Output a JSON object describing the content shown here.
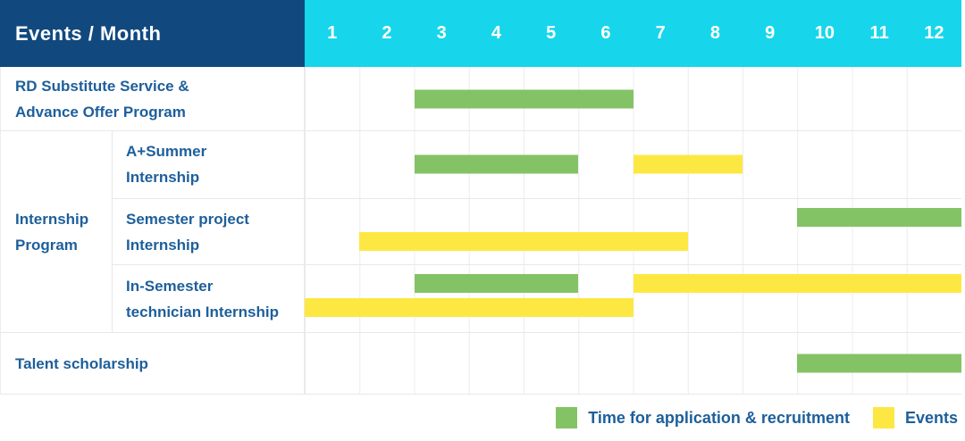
{
  "header": {
    "title": "Events / Month",
    "months": [
      "1",
      "2",
      "3",
      "4",
      "5",
      "6",
      "7",
      "8",
      "9",
      "10",
      "11",
      "12"
    ]
  },
  "colors": {
    "header_bg": "#11497F",
    "months_bg": "#17D6EB",
    "application_green": "#84C365",
    "events_yellow": "#FDE843",
    "label_text": "#1D5F9B",
    "grid_line": "#ECECEC"
  },
  "legend": [
    {
      "key": "application",
      "label": "Time for application & recruitment",
      "color": "#84C365"
    },
    {
      "key": "events",
      "label": "Events",
      "color": "#FDE843"
    }
  ],
  "group": {
    "label": "Internship Program",
    "label_lines": [
      "Internship",
      "Program"
    ]
  },
  "chart_data": {
    "type": "gantt",
    "title": "Events / Month",
    "x_axis": {
      "unit": "month",
      "range": [
        1,
        12
      ],
      "ticks": [
        "1",
        "2",
        "3",
        "4",
        "5",
        "6",
        "7",
        "8",
        "9",
        "10",
        "11",
        "12"
      ]
    },
    "grid": true,
    "legend_position": "bottom-right",
    "series_legend": {
      "application": "Time for application & recruitment",
      "events": "Events"
    },
    "rows": [
      {
        "label": "RD Substitute Service & Advance Offer Program",
        "label_lines": [
          "RD Substitute Service &",
          "Advance Offer Program"
        ],
        "group": "",
        "bars": [
          {
            "series": "application",
            "start_month": 3,
            "end_month": 6,
            "lane": "single"
          }
        ]
      },
      {
        "label": "A+Summer Internship",
        "label_lines": [
          "A+Summer",
          "Internship"
        ],
        "group": "Internship Program",
        "bars": [
          {
            "series": "application",
            "start_month": 3,
            "end_month": 5,
            "lane": "single"
          },
          {
            "series": "events",
            "start_month": 7,
            "end_month": 8,
            "lane": "single"
          }
        ]
      },
      {
        "label": "Semester project Internship",
        "label_lines": [
          "Semester project",
          "Internship"
        ],
        "group": "Internship Program",
        "bars": [
          {
            "series": "application",
            "start_month": 10,
            "end_month": 12,
            "lane": "top"
          },
          {
            "series": "events",
            "start_month": 2,
            "end_month": 7,
            "lane": "bottom"
          }
        ]
      },
      {
        "label": "In-Semester technician Internship",
        "label_lines": [
          "In-Semester",
          "technician Internship"
        ],
        "group": "Internship Program",
        "bars": [
          {
            "series": "application",
            "start_month": 3,
            "end_month": 5,
            "lane": "top"
          },
          {
            "series": "events",
            "start_month": 7,
            "end_month": 12,
            "lane": "top"
          },
          {
            "series": "events",
            "start_month": 1,
            "end_month": 6,
            "lane": "bottom"
          }
        ]
      },
      {
        "label": "Talent scholarship",
        "label_lines": [
          "Talent scholarship"
        ],
        "group": "",
        "bars": [
          {
            "series": "application",
            "start_month": 10,
            "end_month": 12,
            "lane": "single"
          }
        ]
      }
    ]
  }
}
